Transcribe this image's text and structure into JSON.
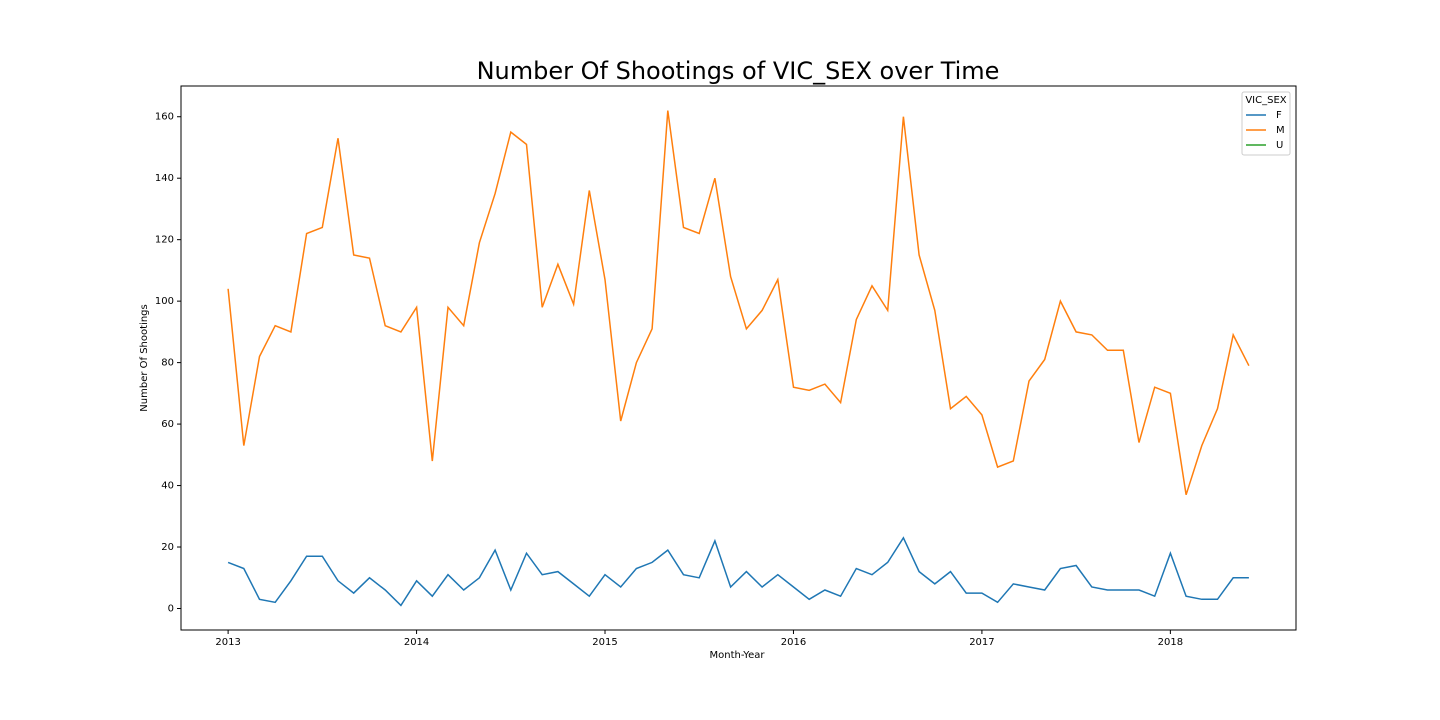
{
  "chart_data": {
    "type": "line",
    "title": "Number Of Shootings of VIC_SEX over Time",
    "x_label": "Month-Year",
    "y_label": "Number Of Shootings",
    "legend_title": "VIC_SEX",
    "legend_position": "upper right",
    "x": [
      "2013-01",
      "2013-02",
      "2013-03",
      "2013-04",
      "2013-05",
      "2013-06",
      "2013-07",
      "2013-08",
      "2013-09",
      "2013-10",
      "2013-11",
      "2013-12",
      "2014-01",
      "2014-02",
      "2014-03",
      "2014-04",
      "2014-05",
      "2014-06",
      "2014-07",
      "2014-08",
      "2014-09",
      "2014-10",
      "2014-11",
      "2014-12",
      "2015-01",
      "2015-02",
      "2015-03",
      "2015-04",
      "2015-05",
      "2015-06",
      "2015-07",
      "2015-08",
      "2015-09",
      "2015-10",
      "2015-11",
      "2015-12",
      "2016-01",
      "2016-02",
      "2016-03",
      "2016-04",
      "2016-05",
      "2016-06",
      "2016-07",
      "2016-08",
      "2016-09",
      "2016-10",
      "2016-11",
      "2016-12",
      "2017-01",
      "2017-02",
      "2017-03",
      "2017-04",
      "2017-05",
      "2017-06",
      "2017-07",
      "2017-08",
      "2017-09",
      "2017-10",
      "2017-11",
      "2017-12",
      "2018-01",
      "2018-02",
      "2018-03",
      "2018-04",
      "2018-05",
      "2018-06"
    ],
    "series": [
      {
        "name": "F",
        "color": "#1f77b4",
        "values": [
          15,
          13,
          3,
          2,
          9,
          17,
          17,
          9,
          5,
          10,
          6,
          1,
          9,
          4,
          11,
          6,
          10,
          19,
          6,
          18,
          11,
          12,
          8,
          4,
          11,
          7,
          13,
          15,
          19,
          11,
          10,
          22,
          7,
          12,
          7,
          11,
          7,
          3,
          6,
          4,
          13,
          11,
          15,
          23,
          12,
          8,
          12,
          5,
          5,
          2,
          8,
          7,
          6,
          13,
          14,
          7,
          6,
          6,
          6,
          4,
          18,
          4,
          3,
          3,
          10,
          10
        ]
      },
      {
        "name": "M",
        "color": "#ff7f0e",
        "values": [
          104,
          53,
          82,
          92,
          90,
          122,
          124,
          153,
          115,
          114,
          92,
          90,
          98,
          48,
          98,
          92,
          119,
          135,
          155,
          151,
          98,
          112,
          99,
          136,
          107,
          61,
          80,
          91,
          162,
          124,
          122,
          140,
          108,
          91,
          97,
          107,
          72,
          71,
          73,
          67,
          94,
          105,
          97,
          160,
          115,
          97,
          65,
          69,
          63,
          46,
          48,
          74,
          81,
          100,
          90,
          89,
          84,
          84,
          54,
          72,
          70,
          37,
          53,
          65,
          89,
          79
        ]
      },
      {
        "name": "U",
        "color": "#2ca02c",
        "values": [
          null,
          null,
          null,
          null,
          null,
          null,
          null,
          null,
          null,
          null,
          null,
          null,
          null,
          null,
          null,
          null,
          null,
          null,
          null,
          null,
          null,
          null,
          null,
          null,
          null,
          null,
          null,
          null,
          null,
          null,
          null,
          null,
          null,
          null,
          null,
          null,
          null,
          null,
          null,
          null,
          null,
          null,
          null,
          null,
          null,
          null,
          null,
          null,
          null,
          null,
          null,
          null,
          null,
          null,
          null,
          null,
          null,
          null,
          null,
          null,
          null,
          null,
          null,
          null,
          null,
          null
        ]
      }
    ],
    "xlim": [
      "2012-10",
      "2018-09"
    ],
    "xticks": [
      {
        "value": "2013-01",
        "label": "2013"
      },
      {
        "value": "2014-01",
        "label": "2014"
      },
      {
        "value": "2015-01",
        "label": "2015"
      },
      {
        "value": "2016-01",
        "label": "2016"
      },
      {
        "value": "2017-01",
        "label": "2017"
      },
      {
        "value": "2018-01",
        "label": "2018"
      }
    ],
    "ylim": [
      -7,
      170
    ],
    "yticks": [
      0,
      20,
      40,
      60,
      80,
      100,
      120,
      140,
      160
    ],
    "grid": false
  }
}
